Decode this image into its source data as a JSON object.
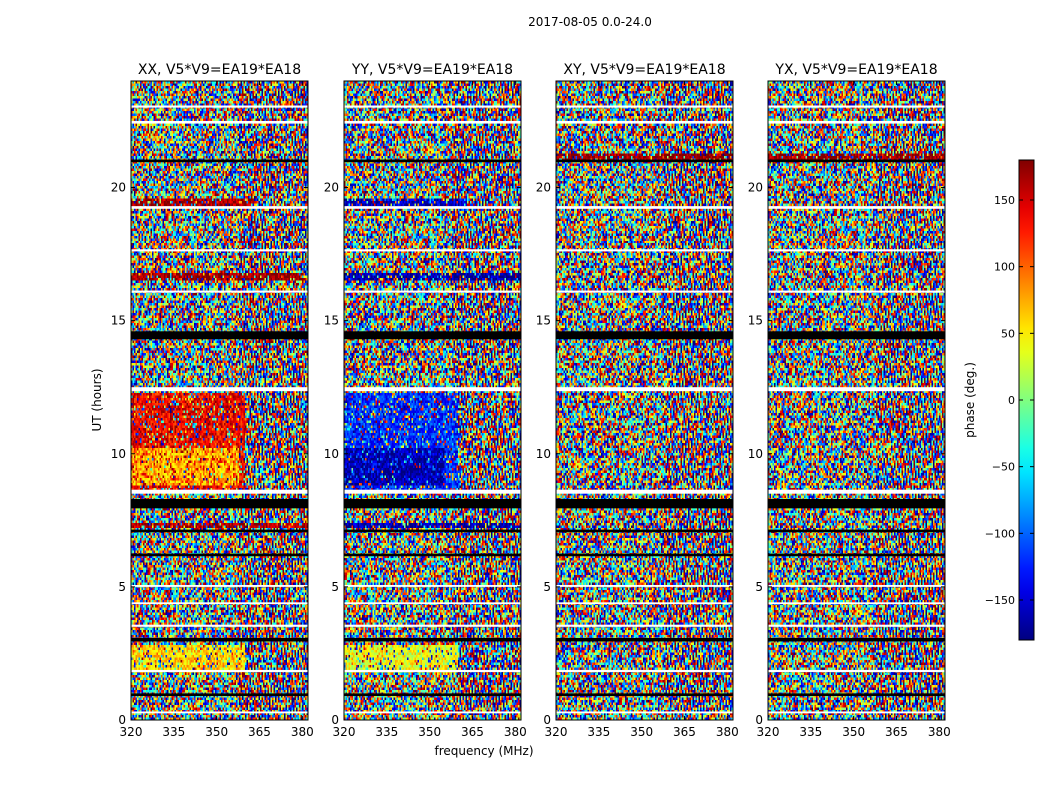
{
  "chart_data": {
    "type": "heatmap",
    "title": "2017-08-05 0.0-24.0",
    "xlabel": "frequency (MHz)",
    "ylabel": "UT (hours)",
    "xlim": [
      320,
      382
    ],
    "ylim": [
      0,
      24
    ],
    "x_ticks": [
      320,
      335,
      350,
      365,
      380
    ],
    "y_ticks": [
      0,
      5,
      10,
      15,
      20
    ],
    "panels": [
      {
        "title": "XX, V5*V9=EA19*EA18",
        "pol": "XX"
      },
      {
        "title": "YY, V5*V9=EA19*EA18",
        "pol": "YY"
      },
      {
        "title": "XY, V5*V9=EA19*EA18",
        "pol": "XY"
      },
      {
        "title": "YX, V5*V9=EA19*EA18",
        "pol": "YX"
      }
    ],
    "colorbar": {
      "label": "phase (deg.)",
      "range": [
        -180,
        180
      ],
      "ticks": [
        150,
        100,
        50,
        0,
        -50,
        -100,
        -150
      ],
      "tick_labels": [
        "150",
        "100",
        "50",
        "0",
        "−50",
        "−100",
        "−150"
      ],
      "colormap": "jet"
    },
    "flagged_ut_bands": [
      {
        "from": 0.25,
        "to": 0.32,
        "color": "#ffffff"
      },
      {
        "from": 0.9,
        "to": 1.0,
        "color": "#000000"
      },
      {
        "from": 1.8,
        "to": 1.88,
        "color": "#ffffff"
      },
      {
        "from": 2.95,
        "to": 3.08,
        "color": "#000000"
      },
      {
        "from": 3.5,
        "to": 3.58,
        "color": "#ffffff"
      },
      {
        "from": 4.35,
        "to": 4.42,
        "color": "#ffffff"
      },
      {
        "from": 5.0,
        "to": 5.07,
        "color": "#ffffff"
      },
      {
        "from": 6.15,
        "to": 6.25,
        "color": "#000000"
      },
      {
        "from": 7.05,
        "to": 7.15,
        "color": "#000000"
      },
      {
        "from": 7.95,
        "to": 8.3,
        "color": "#000000"
      },
      {
        "from": 8.5,
        "to": 8.65,
        "color": "#ffffff"
      },
      {
        "from": 12.35,
        "to": 12.5,
        "color": "#ffffff"
      },
      {
        "from": 14.3,
        "to": 14.6,
        "color": "#000000"
      },
      {
        "from": 16.05,
        "to": 16.13,
        "color": "#ffffff"
      },
      {
        "from": 17.6,
        "to": 17.68,
        "color": "#ffffff"
      },
      {
        "from": 19.2,
        "to": 19.3,
        "color": "#ffffff"
      },
      {
        "from": 20.95,
        "to": 21.05,
        "color": "#000000"
      },
      {
        "from": 22.4,
        "to": 22.5,
        "color": "#ffffff"
      },
      {
        "from": 23.0,
        "to": 23.08,
        "color": "#ffffff"
      }
    ],
    "coherent_phase_regions": [
      {
        "panel": "XX",
        "ut_from": 8.6,
        "ut_to": 12.3,
        "freq_to": 360,
        "phase": 140
      },
      {
        "panel": "XX",
        "ut_from": 8.8,
        "ut_to": 10.2,
        "freq_to": 358,
        "phase": 70
      },
      {
        "panel": "XX",
        "ut_from": 19.2,
        "ut_to": 19.6,
        "freq_to": 363,
        "phase": 170
      },
      {
        "panel": "XX",
        "ut_from": 16.5,
        "ut_to": 16.8,
        "freq_to": 382,
        "phase": 175
      },
      {
        "panel": "XX",
        "ut_from": 7.2,
        "ut_to": 7.4,
        "freq_to": 382,
        "phase": 170
      },
      {
        "panel": "XX",
        "ut_from": 1.8,
        "ut_to": 2.8,
        "freq_to": 360,
        "phase": 60
      },
      {
        "panel": "YY",
        "ut_from": 8.6,
        "ut_to": 12.3,
        "freq_to": 360,
        "phase": -120
      },
      {
        "panel": "YY",
        "ut_from": 8.8,
        "ut_to": 10.2,
        "freq_to": 355,
        "phase": -170
      },
      {
        "panel": "YY",
        "ut_from": 19.2,
        "ut_to": 19.6,
        "freq_to": 363,
        "phase": -160
      },
      {
        "panel": "YY",
        "ut_from": 16.5,
        "ut_to": 16.8,
        "freq_to": 382,
        "phase": -170
      },
      {
        "panel": "YY",
        "ut_from": 7.2,
        "ut_to": 7.4,
        "freq_to": 382,
        "phase": -165
      },
      {
        "panel": "YY",
        "ut_from": 1.8,
        "ut_to": 2.8,
        "freq_to": 360,
        "phase": 40
      },
      {
        "panel": "XY",
        "ut_from": 21.0,
        "ut_to": 21.3,
        "freq_to": 382,
        "phase": 175
      },
      {
        "panel": "YX",
        "ut_from": 21.0,
        "ut_to": 21.3,
        "freq_to": 382,
        "phase": 175
      }
    ]
  }
}
